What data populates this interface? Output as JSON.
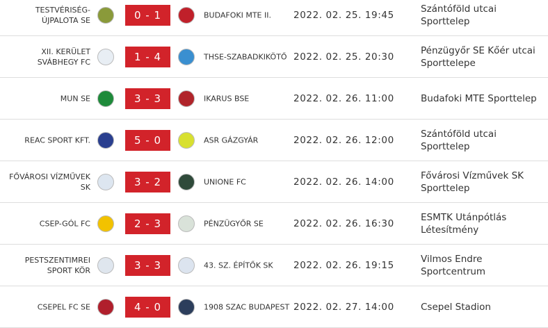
{
  "rows": [
    {
      "home": "TESTVÉRISÉG-ÚJPALOTA SE",
      "score": "0 - 1",
      "away": "BUDAFOKI MTE II.",
      "datetime": "2022. 02. 25. 19:45",
      "venue": "Szántóföld utcai Sporttelep"
    },
    {
      "home": "XII. KERÜLET SVÁBHEGY FC",
      "score": "1 - 4",
      "away": "THSE-SZABADKIKÖTŐ",
      "datetime": "2022. 02. 25. 20:30",
      "venue": "Pénzügyőr SE Kőér utcai Sporttelepe"
    },
    {
      "home": "MUN SE",
      "score": "3 - 3",
      "away": "IKARUS BSE",
      "datetime": "2022. 02. 26. 11:00",
      "venue": "Budafoki MTE Sporttelep"
    },
    {
      "home": "REAC SPORT KFT.",
      "score": "5 - 0",
      "away": "ASR GÁZGYÁR",
      "datetime": "2022. 02. 26. 12:00",
      "venue": "Szántóföld utcai Sporttelep"
    },
    {
      "home": "FŐVÁROSI VÍZMŰVEK SK",
      "score": "3 - 2",
      "away": "UNIONE FC",
      "datetime": "2022. 02. 26. 14:00",
      "venue": "Fővárosi Vízművek SK Sporttelep"
    },
    {
      "home": "CSEP-GÓL FC",
      "score": "2 - 3",
      "away": "PÉNZÜGYŐR SE",
      "datetime": "2022. 02. 26. 16:30",
      "venue": "ESMTK Utánpótlás Létesítmény"
    },
    {
      "home": "PESTSZENTIMREI SPORT KÖR",
      "score": "3 - 3",
      "away": "43. SZ. ÉPÍTŐK SK",
      "datetime": "2022. 02. 26. 19:15",
      "venue": "Vilmos Endre Sportcentrum"
    },
    {
      "home": "CSEPEL FC SE",
      "score": "4 - 0",
      "away": "1908 SZAC BUDAPEST",
      "datetime": "2022. 02. 27. 14:00",
      "venue": "Csepel Stadion"
    }
  ]
}
